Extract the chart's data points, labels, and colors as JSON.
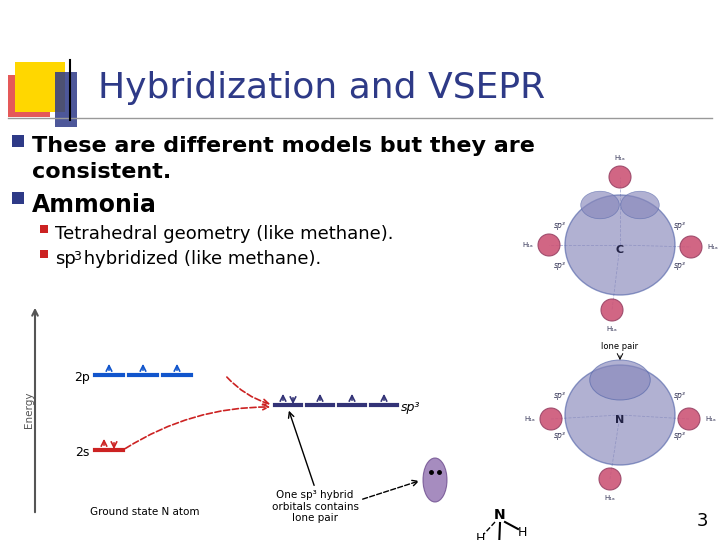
{
  "title": "Hybridization and VSEPR",
  "title_color": "#2E3A87",
  "title_fontsize": 26,
  "background_color": "#FFFFFF",
  "accent_yellow": "#FFD700",
  "accent_red": "#DD2222",
  "accent_blue": "#2E3A87",
  "bullet_color": "#2E3A87",
  "sub_bullet_color": "#CC2222",
  "bullet1_line1": "These are different models but they are",
  "bullet1_line2": "consistent.",
  "bullet2": "Ammonia",
  "sub1": "Tetrahedral geometry (like methane).",
  "sub2": "sp³ hybridized (like methane).",
  "page_number": "3",
  "line_color": "#999999"
}
